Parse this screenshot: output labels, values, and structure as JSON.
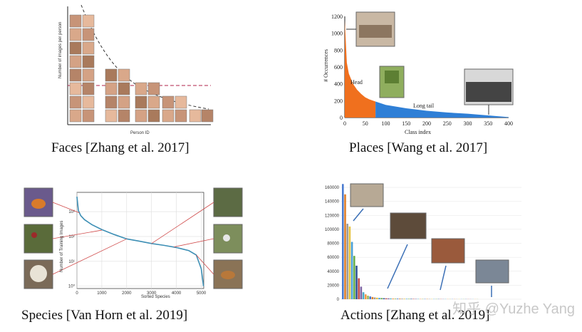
{
  "captions": {
    "faces": "Faces [Zhang et al. 2017]",
    "places": "Places [Wang et al. 2017]",
    "species": "Species [Van Horn et al. 2019]",
    "actions": "Actions [Zhang et al. 2019]"
  },
  "watermark": "知乎 @Yuzhe Yang",
  "chart_data": [
    {
      "type": "area",
      "panel": "faces",
      "xlabel": "Person ID",
      "ylabel": "Number of images per person"
    },
    {
      "type": "area",
      "panel": "places",
      "xlabel": "Class index",
      "ylabel": "# Occurrences",
      "xlim": [
        0,
        400
      ],
      "ylim": [
        0,
        1200
      ],
      "xticks": [
        "0",
        "50",
        "100",
        "150",
        "200",
        "250",
        "300",
        "350",
        "400"
      ],
      "yticks": [
        "0",
        "200",
        "400",
        "600",
        "800",
        "1000",
        "1200"
      ],
      "annotations": [
        "Head",
        "Long tail"
      ],
      "series": [
        {
          "name": "Head",
          "color": "#f0701e",
          "x": [
            0,
            5,
            10,
            20,
            30,
            40,
            50,
            60,
            75
          ],
          "y": [
            1150,
            650,
            520,
            400,
            330,
            280,
            240,
            215,
            190
          ]
        },
        {
          "name": "Long tail",
          "color": "#2f7fd6",
          "x": [
            75,
            100,
            150,
            200,
            250,
            300,
            350,
            400
          ],
          "y": [
            190,
            150,
            110,
            80,
            60,
            45,
            25,
            5
          ]
        }
      ]
    },
    {
      "type": "line",
      "panel": "species",
      "xlabel": "Sorted Species",
      "ylabel": "Number of Training Images",
      "yscale": "log",
      "xlim": [
        0,
        5100
      ],
      "ylim": [
        0.8,
        6000
      ],
      "xticks": [
        "0",
        "1000",
        "2000",
        "3000",
        "4000",
        "5000"
      ],
      "yticks": [
        "10⁰",
        "10¹",
        "10²",
        "10³"
      ],
      "series": [
        {
          "color": "#3d8fb5",
          "x": [
            0,
            60,
            150,
            300,
            600,
            1000,
            1500,
            2000,
            2500,
            3000,
            3500,
            4000,
            4500,
            4800,
            5000,
            5089
          ],
          "y": [
            4000,
            1100,
            700,
            480,
            300,
            190,
            120,
            80,
            65,
            52,
            44,
            36,
            27,
            18,
            5,
            1
          ]
        }
      ]
    },
    {
      "type": "bar",
      "panel": "actions",
      "ylim": [
        0,
        160000
      ],
      "yticks": [
        "0",
        "20000",
        "40000",
        "60000",
        "80000",
        "100000",
        "120000",
        "140000",
        "160000"
      ],
      "values": [
        165000,
        150000,
        108000,
        104000,
        82000,
        62000,
        48000,
        30000,
        18000,
        10000,
        7000,
        5000,
        4000,
        3200,
        2600,
        2200,
        1900,
        1700,
        1500,
        1300,
        1200,
        1100,
        1000,
        900,
        850,
        800,
        750,
        700,
        650,
        600,
        560,
        520,
        480,
        450,
        420,
        400,
        380,
        360,
        340,
        320,
        300,
        290,
        280,
        270,
        260,
        250,
        240,
        230,
        220,
        210,
        200,
        195,
        190,
        185,
        180,
        175,
        170,
        165,
        160,
        155
      ],
      "colors": [
        "#4a7bd0",
        "#e0802a",
        "#9a9a9a",
        "#e8c23a",
        "#4aa0d8",
        "#6ab04c",
        "#2f5597",
        "#c0504d",
        "#8064a2",
        "#4bacc6",
        "#f79646",
        "#9bbb59"
      ]
    }
  ]
}
